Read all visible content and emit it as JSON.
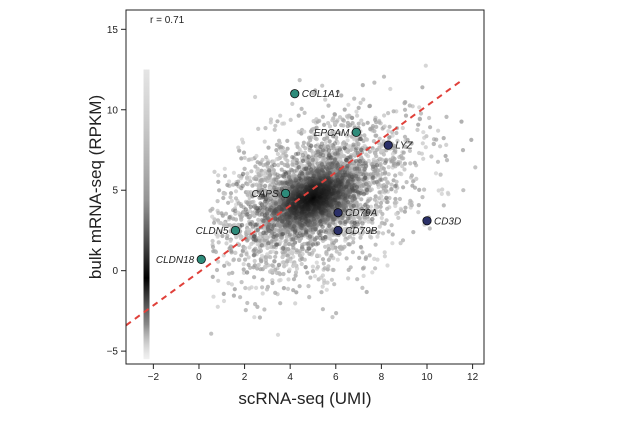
{
  "chart_data": {
    "type": "scatter",
    "title": "",
    "xlabel": "scRNA-seq (UMI)",
    "ylabel": "bulk mRNA-seq (RPKM)",
    "xlim": [
      -3.2,
      12.5
    ],
    "ylim": [
      -5.8,
      16.2
    ],
    "xticks": [
      -2,
      0,
      2,
      4,
      6,
      8,
      10,
      12
    ],
    "yticks": [
      -5,
      0,
      5,
      10,
      15
    ],
    "grid": false,
    "annotation": "r = 0.71",
    "fit_line": {
      "style": "dashed",
      "color": "#e0403a",
      "x": [
        -3.2,
        11.5
      ],
      "y": [
        -3.4,
        11.8
      ]
    },
    "density_cloud": {
      "description_note": "dense grey scatter cloud, darkest near center",
      "center": [
        5.0,
        4.5
      ],
      "point_color": "#bdbdbd",
      "core_color": "#111111"
    },
    "zero_strip": {
      "x": -2.3,
      "y_range": [
        -5.5,
        12.5
      ],
      "color": "#222222"
    },
    "highlighted_genes": [
      {
        "name": "COL1A1",
        "x": 4.2,
        "y": 11.0,
        "color": "#2e8b7a",
        "label_side": "right"
      },
      {
        "name": "EPCAM",
        "x": 6.9,
        "y": 8.6,
        "color": "#2e8b7a",
        "label_side": "left"
      },
      {
        "name": "LYZ",
        "x": 8.3,
        "y": 7.8,
        "color": "#2b3068",
        "label_side": "right"
      },
      {
        "name": "CAPS",
        "x": 3.8,
        "y": 4.8,
        "color": "#2e8b7a",
        "label_side": "left"
      },
      {
        "name": "CD79A",
        "x": 6.1,
        "y": 3.6,
        "color": "#2b3068",
        "label_side": "right"
      },
      {
        "name": "CD3D",
        "x": 10.0,
        "y": 3.1,
        "color": "#2b3068",
        "label_side": "right"
      },
      {
        "name": "CLDN5",
        "x": 1.6,
        "y": 2.5,
        "color": "#2e8b7a",
        "label_side": "left"
      },
      {
        "name": "CD79B",
        "x": 6.1,
        "y": 2.5,
        "color": "#2b3068",
        "label_side": "right"
      },
      {
        "name": "CLDN18",
        "x": 0.1,
        "y": 0.7,
        "color": "#2e8b7a",
        "label_side": "left"
      }
    ]
  }
}
